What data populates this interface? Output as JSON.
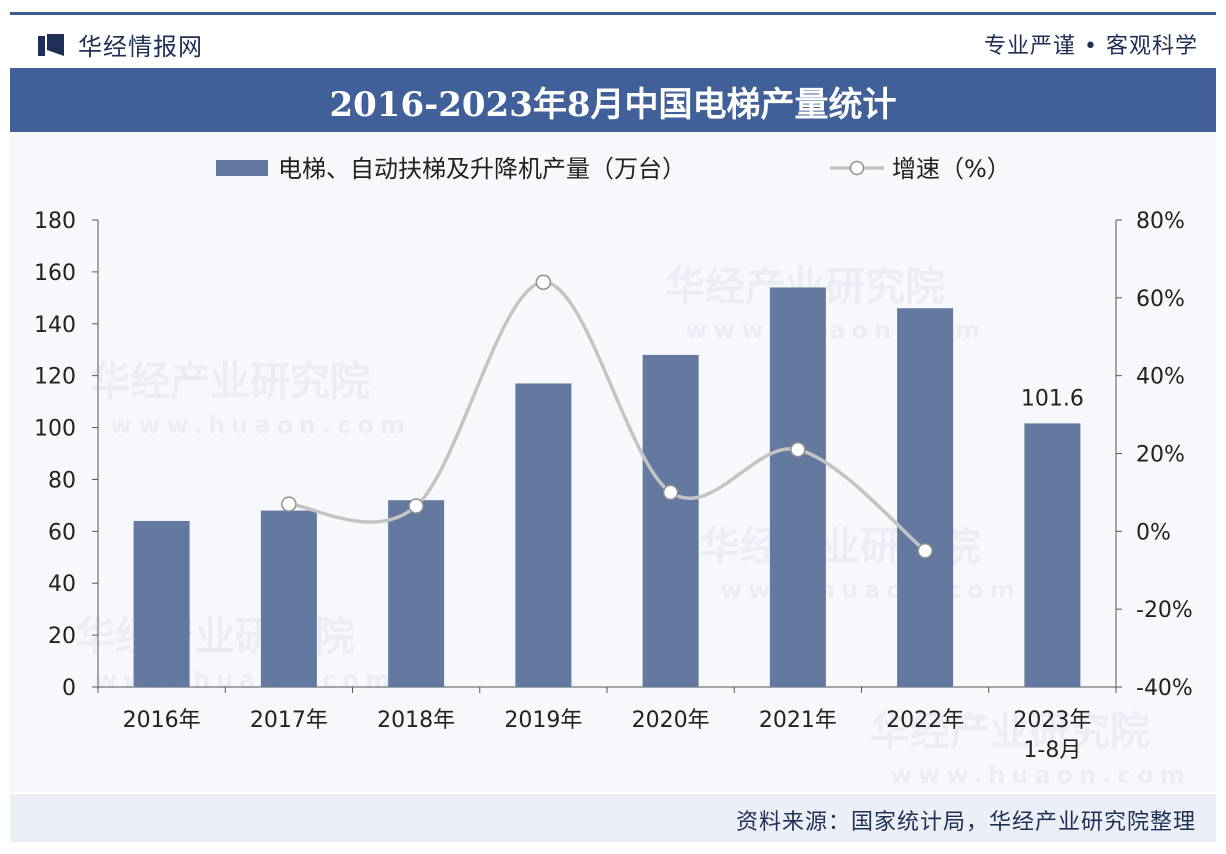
{
  "header": {
    "brand": "华经情报网",
    "slogan": "专业严谨 • 客观科学"
  },
  "banner_title": "2016-2023年8月中国电梯产量统计",
  "footer": {
    "source": "资料来源：国家统计局，华经产业研究院整理"
  },
  "watermark": {
    "text": "华经产业研究院",
    "url": "www.huaon.com"
  },
  "colors": {
    "bar": "#63799f",
    "line": "#c4c4c4",
    "banner": "#41609a",
    "text": "#1f2f55"
  },
  "chart_data": {
    "type": "bar",
    "title": "2016-2023年8月中国电梯产量统计",
    "categories": [
      "2016年",
      "2017年",
      "2018年",
      "2019年",
      "2020年",
      "2021年",
      "2022年",
      "2023年\n1-8月"
    ],
    "series": [
      {
        "name": "电梯、自动扶梯及升降机产量（万台）",
        "type": "bar",
        "axis": "left",
        "values": [
          64,
          68,
          72,
          117,
          128,
          154,
          146,
          101.6
        ]
      },
      {
        "name": "增速（%）",
        "type": "line",
        "axis": "right",
        "values": [
          null,
          7,
          6.5,
          64,
          10,
          21,
          -5,
          null
        ]
      }
    ],
    "data_labels": [
      {
        "category_index": 7,
        "text": "101.6"
      }
    ],
    "y_left": {
      "min": 0,
      "max": 180,
      "ticks": [
        "0",
        "20",
        "40",
        "60",
        "80",
        "100",
        "120",
        "140",
        "160",
        "180"
      ]
    },
    "y_right": {
      "min": -40,
      "max": 80,
      "ticks": [
        "-40%",
        "-20%",
        "0%",
        "20%",
        "40%",
        "60%",
        "80%"
      ]
    },
    "legend_position": "top-center",
    "grid": false
  }
}
